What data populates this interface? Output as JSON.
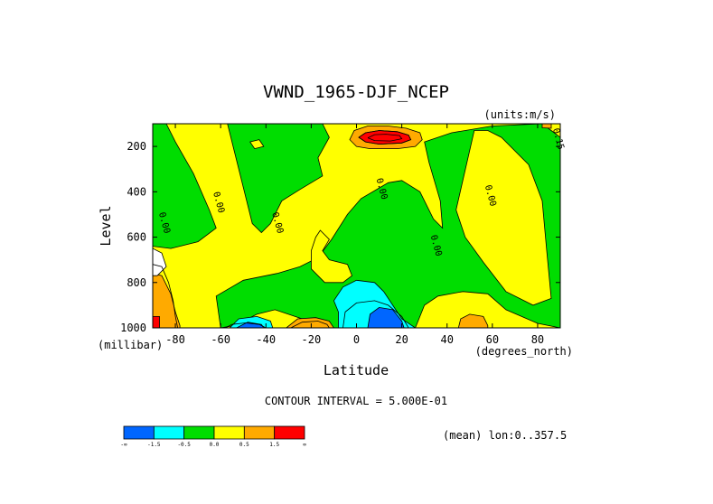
{
  "chart_data": {
    "type": "heatmap",
    "title": "VWND_1965-DJF_NCEP",
    "units_label": "(units:m/s)",
    "xlabel": "Latitude",
    "xunit_label": "(degrees_north)",
    "ylabel": "Level",
    "yunit_label": "(millibar)",
    "xlim": [
      -90,
      90
    ],
    "ylim": [
      1000,
      100
    ],
    "x_ticks": [
      -80,
      -60,
      -40,
      -20,
      0,
      20,
      40,
      60,
      80
    ],
    "y_ticks": [
      200,
      400,
      600,
      800,
      1000
    ],
    "contour_interval_text": "CONTOUR INTERVAL = 5.000E-01",
    "mean_text": "(mean) lon:0..357.5",
    "contour_labels": [
      {
        "text": "0.00",
        "lat": -86,
        "level": 540
      },
      {
        "text": "0.00",
        "lat": -62,
        "level": 450
      },
      {
        "text": "0.00",
        "lat": -36,
        "level": 540
      },
      {
        "text": "0.00",
        "lat": 10,
        "level": 390
      },
      {
        "text": "0.00",
        "lat": 34,
        "level": 640
      },
      {
        "text": "0.00",
        "lat": 58,
        "level": 420
      },
      {
        "text": "0.15",
        "lat": 88,
        "level": 170
      }
    ],
    "colorbar": {
      "colors": [
        "#0066ff",
        "#00ffff",
        "#00dd00",
        "#ffff00",
        "#ffaa00",
        "#ff0000"
      ],
      "labels": [
        "-∞",
        "-1.5",
        "-0.5",
        "0.0",
        "0.5",
        "1.5",
        "∞"
      ]
    },
    "regions": [
      {
        "color": "#ffff00",
        "poly": [
          [
            -90,
            100
          ],
          [
            90,
            100
          ],
          [
            90,
            1000
          ],
          [
            -90,
            1000
          ]
        ]
      },
      {
        "color": "#00dd00",
        "poly": [
          [
            -90,
            100
          ],
          [
            -84,
            100
          ],
          [
            -80,
            180
          ],
          [
            -72,
            320
          ],
          [
            -65,
            480
          ],
          [
            -62,
            560
          ],
          [
            -70,
            620
          ],
          [
            -82,
            650
          ],
          [
            -90,
            640
          ]
        ]
      },
      {
        "color": "#00dd00",
        "poly": [
          [
            -57,
            100
          ],
          [
            -15,
            100
          ],
          [
            -12,
            160
          ],
          [
            -17,
            250
          ],
          [
            -15,
            330
          ],
          [
            -25,
            390
          ],
          [
            -33,
            440
          ],
          [
            -38,
            540
          ],
          [
            -42,
            580
          ],
          [
            -46,
            540
          ],
          [
            -50,
            380
          ],
          [
            -54,
            220
          ]
        ]
      },
      {
        "color": "#00dd00",
        "poly": [
          [
            -62,
            860
          ],
          [
            -50,
            790
          ],
          [
            -35,
            760
          ],
          [
            -25,
            730
          ],
          [
            -17,
            690
          ],
          [
            -11,
            610
          ],
          [
            -4,
            500
          ],
          [
            2,
            430
          ],
          [
            14,
            360
          ],
          [
            20,
            350
          ],
          [
            28,
            400
          ],
          [
            34,
            520
          ],
          [
            38,
            560
          ],
          [
            37,
            440
          ],
          [
            32,
            270
          ],
          [
            30,
            180
          ],
          [
            42,
            140
          ],
          [
            60,
            110
          ],
          [
            82,
            100
          ],
          [
            86,
            130
          ],
          [
            90,
            160
          ],
          [
            90,
            1000
          ],
          [
            80,
            980
          ],
          [
            66,
            920
          ],
          [
            58,
            850
          ],
          [
            47,
            840
          ],
          [
            36,
            860
          ],
          [
            30,
            900
          ],
          [
            26,
            1000
          ],
          [
            -15,
            1000
          ],
          [
            -24,
            960
          ],
          [
            -36,
            920
          ],
          [
            -44,
            940
          ],
          [
            -54,
            990
          ],
          [
            -60,
            1000
          ]
        ]
      },
      {
        "color": "#ffff00",
        "poly": [
          [
            52,
            130
          ],
          [
            58,
            130
          ],
          [
            64,
            160
          ],
          [
            76,
            280
          ],
          [
            82,
            440
          ],
          [
            84,
            660
          ],
          [
            86,
            870
          ],
          [
            78,
            900
          ],
          [
            66,
            840
          ],
          [
            56,
            710
          ],
          [
            48,
            600
          ],
          [
            44,
            480
          ]
        ]
      },
      {
        "color": "#ffff00",
        "poly": [
          [
            -20,
            660
          ],
          [
            -18,
            600
          ],
          [
            -16,
            570
          ],
          [
            -12,
            610
          ],
          [
            -15,
            660
          ],
          [
            -12,
            700
          ],
          [
            -4,
            720
          ],
          [
            -2,
            770
          ],
          [
            -6,
            800
          ],
          [
            -14,
            800
          ],
          [
            -20,
            740
          ]
        ]
      },
      {
        "color": "#ffff00",
        "poly": [
          [
            -47,
            180
          ],
          [
            -43,
            170
          ],
          [
            -41,
            200
          ],
          [
            -45,
            210
          ]
        ]
      },
      {
        "color": "#00ffff",
        "poly": [
          [
            -8,
            930
          ],
          [
            -10,
            880
          ],
          [
            -6,
            820
          ],
          [
            0,
            790
          ],
          [
            8,
            800
          ],
          [
            12,
            840
          ],
          [
            16,
            900
          ],
          [
            20,
            960
          ],
          [
            26,
            1000
          ],
          [
            -8,
            1000
          ]
        ]
      },
      {
        "color": "#0066ff",
        "poly": [
          [
            5,
            1000
          ],
          [
            6,
            940
          ],
          [
            10,
            910
          ],
          [
            16,
            920
          ],
          [
            20,
            970
          ],
          [
            21,
            1000
          ]
        ]
      },
      {
        "color": "#00ffff",
        "poly": [
          [
            -56,
            1000
          ],
          [
            -52,
            960
          ],
          [
            -44,
            950
          ],
          [
            -38,
            970
          ],
          [
            -37,
            1000
          ]
        ]
      },
      {
        "color": "#0066ff",
        "poly": [
          [
            -53,
            1000
          ],
          [
            -48,
            975
          ],
          [
            -42,
            985
          ],
          [
            -41,
            1000
          ]
        ]
      },
      {
        "color": "#ffaa00",
        "poly": [
          [
            -31,
            1000
          ],
          [
            -26,
            960
          ],
          [
            -18,
            955
          ],
          [
            -12,
            970
          ],
          [
            -10,
            1000
          ]
        ]
      },
      {
        "color": "#ffaa00",
        "poly": [
          [
            -90,
            760
          ],
          [
            -86,
            770
          ],
          [
            -82,
            850
          ],
          [
            -80,
            930
          ],
          [
            -78,
            990
          ],
          [
            -78,
            1000
          ],
          [
            -90,
            1000
          ]
        ]
      },
      {
        "color": "#ff0000",
        "poly": [
          [
            -90,
            950
          ],
          [
            -87,
            950
          ],
          [
            -87,
            1000
          ],
          [
            -90,
            1000
          ]
        ]
      },
      {
        "color": "#ffffff",
        "poly": [
          [
            -90,
            650
          ],
          [
            -86,
            670
          ],
          [
            -84,
            730
          ],
          [
            -88,
            770
          ],
          [
            -90,
            770
          ]
        ]
      },
      {
        "color": "#ffaa00",
        "poly": [
          [
            -3,
            170
          ],
          [
            -1,
            130
          ],
          [
            5,
            110
          ],
          [
            14,
            110
          ],
          [
            22,
            120
          ],
          [
            28,
            140
          ],
          [
            29,
            170
          ],
          [
            26,
            200
          ],
          [
            18,
            210
          ],
          [
            6,
            210
          ],
          [
            0,
            200
          ]
        ]
      },
      {
        "color": "#ff0000",
        "poly": [
          [
            1,
            160
          ],
          [
            4,
            140
          ],
          [
            10,
            130
          ],
          [
            18,
            135
          ],
          [
            23,
            150
          ],
          [
            24,
            170
          ],
          [
            20,
            185
          ],
          [
            10,
            190
          ],
          [
            4,
            180
          ]
        ]
      },
      {
        "color": "#ffaa00",
        "poly": [
          [
            45,
            1000
          ],
          [
            46,
            960
          ],
          [
            50,
            940
          ],
          [
            56,
            950
          ],
          [
            58,
            990
          ],
          [
            58,
            1000
          ]
        ]
      },
      {
        "color": "#ffaa00",
        "poly": [
          [
            82,
            100
          ],
          [
            86,
            100
          ],
          [
            86,
            120
          ],
          [
            82,
            118
          ]
        ]
      }
    ],
    "contour_lines": [
      [
        [
          1,
          160
        ],
        [
          4,
          140
        ],
        [
          10,
          130
        ],
        [
          18,
          135
        ],
        [
          23,
          150
        ],
        [
          24,
          170
        ],
        [
          20,
          185
        ],
        [
          10,
          190
        ],
        [
          4,
          180
        ],
        [
          1,
          160
        ]
      ],
      [
        [
          5,
          162
        ],
        [
          8,
          148
        ],
        [
          13,
          146
        ],
        [
          19,
          152
        ],
        [
          20,
          166
        ],
        [
          15,
          176
        ],
        [
          8,
          174
        ],
        [
          5,
          162
        ]
      ],
      [
        [
          -58,
          1000
        ],
        [
          -55,
          985
        ],
        [
          -49,
          978
        ],
        [
          -43,
          985
        ],
        [
          -40,
          1000
        ]
      ],
      [
        [
          -6,
          1000
        ],
        [
          -5,
          930
        ],
        [
          0,
          890
        ],
        [
          8,
          880
        ],
        [
          14,
          900
        ],
        [
          20,
          950
        ],
        [
          23,
          1000
        ]
      ],
      [
        [
          -29,
          1000
        ],
        [
          -24,
          975
        ],
        [
          -17,
          970
        ],
        [
          -13,
          985
        ],
        [
          -12,
          1000
        ]
      ],
      [
        [
          -90,
          720
        ],
        [
          -86,
          730
        ],
        [
          -83,
          800
        ],
        [
          -81,
          880
        ],
        [
          -80,
          950
        ],
        [
          -79,
          1000
        ]
      ]
    ]
  }
}
